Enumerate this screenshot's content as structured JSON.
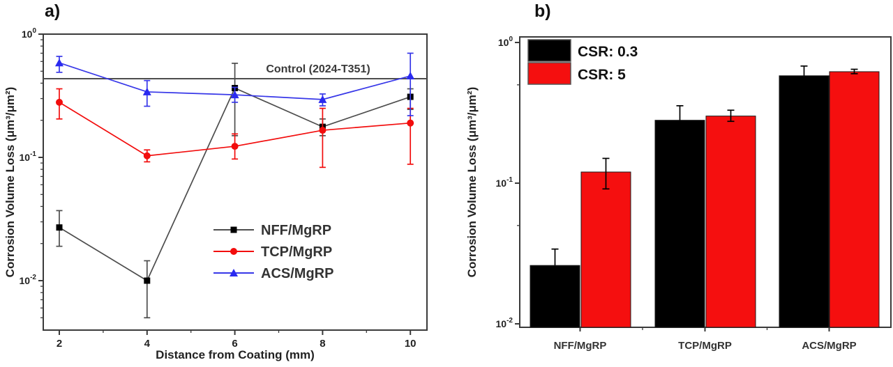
{
  "figure": {
    "background": "#ffffff",
    "panel_a_label": "a)",
    "panel_b_label": "b)"
  },
  "colors": {
    "axis": "#3a3a3a",
    "black_series": "#000000",
    "gray_line": "#4d4d4d",
    "red_series": "#f20d0d",
    "blue_series": "#3737e8",
    "text": "#222222"
  },
  "chart_data": [
    {
      "type": "line",
      "panel": "a",
      "xlabel": "Distance from Coating (mm)",
      "ylabel": "Corrosion Volume Loss (μm³/μm²)",
      "y_scale": "log",
      "y_tick_exponents": [
        0,
        -1,
        -2
      ],
      "ylim": [
        0.004,
        1.0
      ],
      "x_ticks": [
        2,
        4,
        6,
        8,
        10
      ],
      "x_minor_ticks": [
        3,
        5,
        7,
        9
      ],
      "xlim": [
        1.65,
        10.4
      ],
      "grid": false,
      "legend_position": "inside-lower-right",
      "reference_line": {
        "value": 0.435,
        "label": "Control (2024-T351)",
        "color": "#4d4d4d"
      },
      "series": [
        {
          "name": "NFF/MgRP",
          "marker": "square",
          "line_color": "#4d4d4d",
          "marker_color": "#000000",
          "points": [
            {
              "x": 2,
              "y": 0.027,
              "err_lo": 0.019,
              "err_hi": 0.037
            },
            {
              "x": 4,
              "y": 0.01,
              "err_lo": 0.005,
              "err_hi": 0.0145
            },
            {
              "x": 6,
              "y": 0.365,
              "err_lo": 0.15,
              "err_hi": 0.58
            },
            {
              "x": 8,
              "y": 0.177,
              "err_lo": 0.15,
              "err_hi": 0.205
            },
            {
              "x": 10,
              "y": 0.31,
              "err_lo": 0.245,
              "err_hi": 0.36
            }
          ]
        },
        {
          "name": "TCP/MgRP",
          "marker": "circle",
          "line_color": "#f20d0d",
          "marker_color": "#f20d0d",
          "points": [
            {
              "x": 2,
              "y": 0.28,
              "err_lo": 0.205,
              "err_hi": 0.36
            },
            {
              "x": 4,
              "y": 0.103,
              "err_lo": 0.092,
              "err_hi": 0.115
            },
            {
              "x": 6,
              "y": 0.123,
              "err_lo": 0.097,
              "err_hi": 0.155
            },
            {
              "x": 8,
              "y": 0.166,
              "err_lo": 0.083,
              "err_hi": 0.25
            },
            {
              "x": 10,
              "y": 0.19,
              "err_lo": 0.088,
              "err_hi": 0.25
            }
          ]
        },
        {
          "name": "ACS/MgRP",
          "marker": "triangle",
          "line_color": "#3737e8",
          "marker_color": "#2a2af0",
          "points": [
            {
              "x": 2,
              "y": 0.585,
              "err_lo": 0.49,
              "err_hi": 0.66
            },
            {
              "x": 4,
              "y": 0.34,
              "err_lo": 0.26,
              "err_hi": 0.42
            },
            {
              "x": 6,
              "y": 0.322,
              "err_lo": 0.28,
              "err_hi": 0.37
            },
            {
              "x": 8,
              "y": 0.295,
              "err_lo": 0.262,
              "err_hi": 0.327
            },
            {
              "x": 10,
              "y": 0.458,
              "err_lo": 0.218,
              "err_hi": 0.7
            }
          ]
        }
      ]
    },
    {
      "type": "bar",
      "panel": "b",
      "xlabel": "",
      "ylabel": "Corrosion Volume Loss (μm³/μm²)",
      "y_scale": "log",
      "y_tick_exponents": [
        0,
        -1,
        -2
      ],
      "ylim": [
        0.0095,
        1.1
      ],
      "categories": [
        "NFF/MgRP",
        "TCP/MgRP",
        "ACS/MgRP"
      ],
      "grid": false,
      "legend_position": "inside-upper-left",
      "series": [
        {
          "name": "CSR: 0.3",
          "color": "#000000",
          "values": [
            0.026,
            0.28,
            0.58
          ],
          "err_lo": [
            null,
            null,
            null
          ],
          "err_hi": [
            0.034,
            0.355,
            0.68
          ]
        },
        {
          "name": "CSR: 5",
          "color": "#f50f0f",
          "values": [
            0.12,
            0.3,
            0.62
          ],
          "err_lo": [
            0.091,
            0.275,
            0.6
          ],
          "err_hi": [
            0.15,
            0.33,
            0.645
          ]
        }
      ]
    }
  ]
}
